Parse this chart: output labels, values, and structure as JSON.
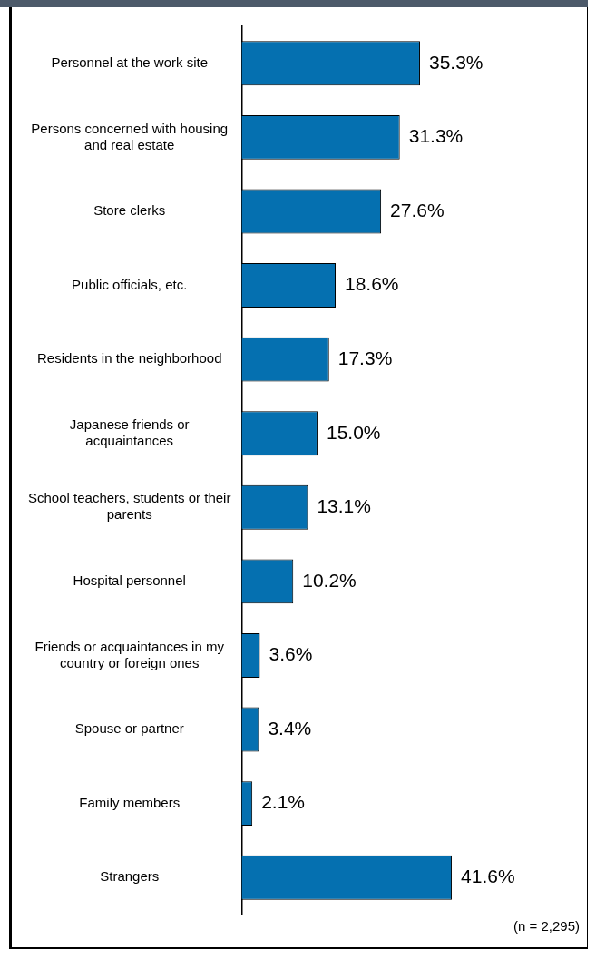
{
  "chart_data": {
    "type": "bar",
    "orientation": "horizontal",
    "categories": [
      "Personnel at the work site",
      "Persons concerned with housing and real estate",
      "Store clerks",
      "Public officials, etc.",
      "Residents in the neighborhood",
      "Japanese friends or acquaintances",
      "School teachers, students or their parents",
      "Hospital personnel",
      "Friends or acquaintances in my country or foreign ones",
      "Spouse or partner",
      "Family members",
      "Strangers"
    ],
    "values": [
      35.3,
      31.3,
      27.6,
      18.6,
      17.3,
      15.0,
      13.1,
      10.2,
      3.6,
      3.4,
      2.1,
      41.6
    ],
    "value_labels": [
      "35.3%",
      "31.3%",
      "27.6%",
      "18.6%",
      "17.3%",
      "15.0%",
      "13.1%",
      "10.2%",
      "3.6%",
      "3.4%",
      "2.1%",
      "41.6%"
    ],
    "color": "#0570b0",
    "annotations": [
      "(n = 2,295)"
    ]
  }
}
